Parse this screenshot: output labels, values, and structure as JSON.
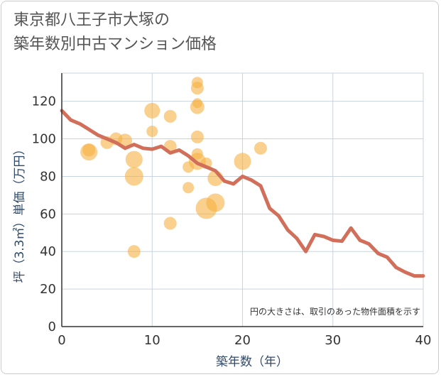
{
  "title_lines": [
    "東京都八王子市大塚の",
    "築年数別中古マンション価格"
  ],
  "colors": {
    "bubble": "#f5b041",
    "line": "#d26f5a",
    "grid": "#c9d3de",
    "axis": "#333333"
  },
  "chart_data": {
    "type": "scatter",
    "xlabel": "築年数（年）",
    "ylabel": "坪（3.3㎡）単価（万円）",
    "xlim": [
      0,
      40
    ],
    "ylim": [
      0,
      135
    ],
    "x_ticks": [
      "0",
      "10",
      "20",
      "30",
      "40"
    ],
    "y_ticks": [
      "0",
      "20",
      "40",
      "60",
      "80",
      "100",
      "120"
    ],
    "grid": true,
    "annotation": "円の大きさは、取引のあった物件面積を示す",
    "series": [
      {
        "kind": "bubble",
        "points": [
          {
            "x": 3,
            "y": 93,
            "size": 12
          },
          {
            "x": 3,
            "y": 94,
            "size": 9
          },
          {
            "x": 5,
            "y": 98,
            "size": 9
          },
          {
            "x": 6,
            "y": 100,
            "size": 9
          },
          {
            "x": 7,
            "y": 99,
            "size": 10
          },
          {
            "x": 8,
            "y": 89,
            "size": 12
          },
          {
            "x": 8,
            "y": 80,
            "size": 13
          },
          {
            "x": 8,
            "y": 40,
            "size": 9
          },
          {
            "x": 10,
            "y": 115,
            "size": 11
          },
          {
            "x": 10,
            "y": 104,
            "size": 8
          },
          {
            "x": 12,
            "y": 112,
            "size": 9
          },
          {
            "x": 12,
            "y": 96,
            "size": 9
          },
          {
            "x": 12,
            "y": 55,
            "size": 9
          },
          {
            "x": 14,
            "y": 85,
            "size": 8
          },
          {
            "x": 14,
            "y": 74,
            "size": 8
          },
          {
            "x": 15,
            "y": 130,
            "size": 8
          },
          {
            "x": 15,
            "y": 127,
            "size": 9
          },
          {
            "x": 15,
            "y": 119,
            "size": 7
          },
          {
            "x": 15,
            "y": 117,
            "size": 10
          },
          {
            "x": 15,
            "y": 101,
            "size": 9
          },
          {
            "x": 15,
            "y": 92,
            "size": 8
          },
          {
            "x": 15,
            "y": 88,
            "size": 12
          },
          {
            "x": 16,
            "y": 87,
            "size": 8
          },
          {
            "x": 16,
            "y": 63,
            "size": 15
          },
          {
            "x": 17,
            "y": 79,
            "size": 11
          },
          {
            "x": 17,
            "y": 66,
            "size": 13
          },
          {
            "x": 20,
            "y": 88,
            "size": 12
          },
          {
            "x": 22,
            "y": 95,
            "size": 9
          }
        ]
      },
      {
        "kind": "line",
        "points": [
          {
            "x": 0,
            "y": 115
          },
          {
            "x": 1,
            "y": 110
          },
          {
            "x": 2,
            "y": 108
          },
          {
            "x": 3,
            "y": 105
          },
          {
            "x": 4,
            "y": 102
          },
          {
            "x": 5,
            "y": 100
          },
          {
            "x": 6,
            "y": 98
          },
          {
            "x": 7,
            "y": 95
          },
          {
            "x": 8,
            "y": 97
          },
          {
            "x": 9,
            "y": 95
          },
          {
            "x": 10,
            "y": 94.5
          },
          {
            "x": 11,
            "y": 96
          },
          {
            "x": 12,
            "y": 92.5
          },
          {
            "x": 13,
            "y": 94
          },
          {
            "x": 14,
            "y": 91
          },
          {
            "x": 15,
            "y": 87
          },
          {
            "x": 16,
            "y": 85
          },
          {
            "x": 17,
            "y": 83
          },
          {
            "x": 18,
            "y": 77.5
          },
          {
            "x": 19,
            "y": 76
          },
          {
            "x": 20,
            "y": 80
          },
          {
            "x": 21,
            "y": 78
          },
          {
            "x": 22,
            "y": 75
          },
          {
            "x": 23,
            "y": 63
          },
          {
            "x": 24,
            "y": 59
          },
          {
            "x": 25,
            "y": 51.5
          },
          {
            "x": 26,
            "y": 47
          },
          {
            "x": 27,
            "y": 40
          },
          {
            "x": 28,
            "y": 49
          },
          {
            "x": 29,
            "y": 48
          },
          {
            "x": 30,
            "y": 46
          },
          {
            "x": 31,
            "y": 45.5
          },
          {
            "x": 32,
            "y": 52.5
          },
          {
            "x": 33,
            "y": 46
          },
          {
            "x": 34,
            "y": 44
          },
          {
            "x": 35,
            "y": 39
          },
          {
            "x": 36,
            "y": 37
          },
          {
            "x": 37,
            "y": 31.5
          },
          {
            "x": 38,
            "y": 29
          },
          {
            "x": 39,
            "y": 27
          },
          {
            "x": 40,
            "y": 27
          }
        ]
      }
    ]
  }
}
